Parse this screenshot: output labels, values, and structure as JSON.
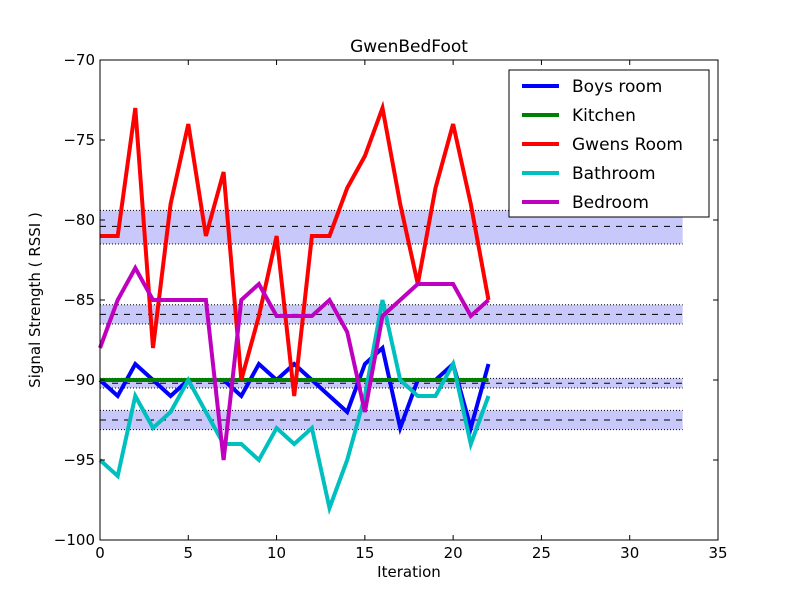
{
  "chart_data": {
    "type": "line",
    "title": "GwenBedFoot",
    "xlabel": "Iteration",
    "ylabel": "Signal Strength  ( RSSI )",
    "xlim": [
      0,
      35
    ],
    "ylim": [
      -100,
      -70
    ],
    "xticks": [
      0,
      5,
      10,
      15,
      20,
      25,
      30,
      35
    ],
    "yticks": [
      -100,
      -95,
      -90,
      -85,
      -80,
      -75,
      -70
    ],
    "xtick_labels": [
      "0",
      "5",
      "10",
      "15",
      "20",
      "25",
      "30",
      "35"
    ],
    "ytick_labels": [
      "−100",
      "−95",
      "−90",
      "−85",
      "−80",
      "−75",
      "−70"
    ],
    "grid": false,
    "legend_position": "top-right",
    "x": [
      0,
      1,
      2,
      3,
      4,
      5,
      6,
      7,
      8,
      9,
      10,
      11,
      12,
      13,
      14,
      15,
      16,
      17,
      18,
      19,
      20,
      21,
      22
    ],
    "series": [
      {
        "name": "Boys room",
        "color": "#0000ff",
        "values": [
          -90,
          -91,
          -89,
          -90,
          -91,
          -90,
          -90,
          -90,
          -91,
          -89,
          -90,
          -89,
          -90,
          -91,
          -92,
          -89,
          -88,
          -93,
          -90,
          -90,
          -89,
          -93,
          -89
        ]
      },
      {
        "name": "Kitchen",
        "color": "#008000",
        "values": [
          -90,
          -90,
          -90,
          -90,
          -90,
          -90,
          -90,
          -90,
          -90,
          -90,
          -90,
          -90,
          -90,
          -90,
          -90,
          -90,
          -90,
          -90,
          -90,
          -90,
          -90,
          -90,
          -90
        ]
      },
      {
        "name": "Gwens Room",
        "color": "#ff0000",
        "values": [
          -81,
          -81,
          -73,
          -88,
          -79,
          -74,
          -81,
          -77,
          -90,
          -86,
          -81,
          -91,
          -81,
          -81,
          -78,
          -76,
          -73,
          -79,
          -84,
          -78,
          -74,
          -79,
          -85
        ]
      },
      {
        "name": "Bathroom",
        "color": "#00bfbf",
        "values": [
          -95,
          -96,
          -91,
          -93,
          -92,
          -90,
          -92,
          -94,
          -94,
          -95,
          -93,
          -94,
          -93,
          -98,
          -95,
          -91,
          -85,
          -90,
          -91,
          -91,
          -89,
          -94,
          -91
        ]
      },
      {
        "name": "Bedroom",
        "color": "#bf00bf",
        "values": [
          -88,
          -85,
          -83,
          -85,
          -85,
          -85,
          -85,
          -95,
          -85,
          -84,
          -86,
          -86,
          -86,
          -85,
          -87,
          -92,
          -86,
          -85,
          -84,
          -84,
          -84,
          -86,
          -85
        ]
      }
    ],
    "bands": [
      {
        "mean": -80.4,
        "low": -81.5,
        "high": -79.4
      },
      {
        "mean": -85.9,
        "low": -86.5,
        "high": -85.3
      },
      {
        "mean": -90.2,
        "low": -90.5,
        "high": -89.9
      },
      {
        "mean": -92.5,
        "low": -93.1,
        "high": -91.9
      }
    ],
    "band_x_range": [
      0,
      33
    ],
    "band_fill_color": "#c8c8fa",
    "band_edge_color": "#000000"
  }
}
